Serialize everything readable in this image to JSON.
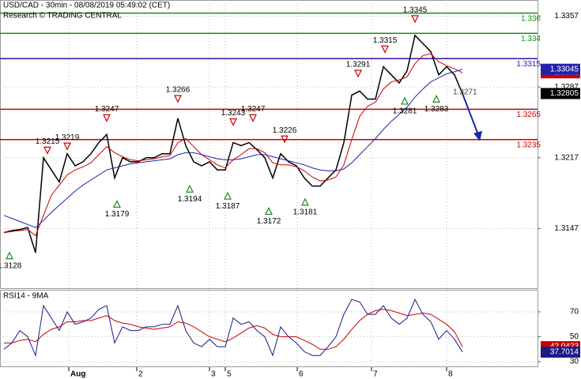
{
  "chart_data": [
    {
      "type": "line",
      "title": "USD/CAD - 30min - 08/08/2019 05:49:02 (CET)",
      "subtitle": "Research © TRADING CENTRAL",
      "x": [
        0,
        1,
        2,
        3,
        4,
        5,
        6,
        7,
        8,
        9,
        10,
        11,
        12,
        13,
        14,
        15,
        16,
        17,
        18,
        19,
        20,
        21,
        22,
        23,
        24,
        25,
        26,
        27,
        28,
        29,
        30,
        31,
        32,
        33,
        34,
        35,
        36,
        37,
        38,
        39,
        40,
        41,
        42,
        43,
        44,
        45,
        46,
        47,
        48,
        49,
        50,
        51,
        52,
        53,
        54,
        55,
        56,
        57,
        58
      ],
      "xlim": [
        -0.5,
        67.5
      ],
      "ylim": [
        1.3088,
        1.3373
      ],
      "yticks": [
        1.3357,
        1.3287,
        1.3217,
        1.3147
      ],
      "grid": true,
      "series": [
        {
          "color": "#000000",
          "values": [
            1.3143,
            1.3145,
            1.3146,
            1.3148,
            1.3123,
            1.3217,
            1.3205,
            1.3193,
            1.3221,
            1.3209,
            1.3213,
            1.3221,
            1.3232,
            1.324,
            1.3197,
            1.3217,
            1.3213,
            1.3213,
            1.3217,
            1.3217,
            1.3221,
            1.3221,
            1.3256,
            1.3229,
            1.3213,
            1.3209,
            1.3213,
            1.3205,
            1.3205,
            1.3232,
            1.3229,
            1.3232,
            1.3225,
            1.3217,
            1.3197,
            1.3221,
            1.3213,
            1.3209,
            1.3197,
            1.3189,
            1.3189,
            1.3197,
            1.3205,
            1.3232,
            1.3279,
            1.3283,
            1.3275,
            1.3275,
            1.3307,
            1.3299,
            1.3291,
            1.3303,
            1.3338,
            1.333,
            1.3322,
            1.3299,
            1.3307,
            1.3299,
            1.32805
          ]
        },
        {
          "color": "#cc0000",
          "values": [
            1.3143,
            1.3144,
            1.3145,
            1.3146,
            1.314,
            1.316,
            1.318,
            1.319,
            1.32,
            1.3205,
            1.3208,
            1.3212,
            1.322,
            1.3228,
            1.3222,
            1.3218,
            1.3215,
            1.3214,
            1.3215,
            1.3216,
            1.3218,
            1.3219,
            1.3232,
            1.3236,
            1.3228,
            1.322,
            1.3215,
            1.321,
            1.3207,
            1.3215,
            1.322,
            1.3226,
            1.3226,
            1.3222,
            1.3212,
            1.321,
            1.321,
            1.3208,
            1.3204,
            1.3198,
            1.3194,
            1.3195,
            1.3198,
            1.321,
            1.3235,
            1.3258,
            1.3268,
            1.3272,
            1.3285,
            1.3292,
            1.3294,
            1.3297,
            1.331,
            1.3318,
            1.332,
            1.3312,
            1.3308,
            1.3305,
            1.3301
          ]
        },
        {
          "color": "#2222aa",
          "values": [
            1.316,
            1.3157,
            1.3154,
            1.3151,
            1.3148,
            1.3155,
            1.3163,
            1.317,
            1.3177,
            1.3184,
            1.319,
            1.3195,
            1.32,
            1.3205,
            1.3207,
            1.3209,
            1.3211,
            1.3212,
            1.3213,
            1.3214,
            1.3215,
            1.3216,
            1.322,
            1.3222,
            1.3222,
            1.322,
            1.3218,
            1.3216,
            1.3215,
            1.3215,
            1.3216,
            1.3218,
            1.322,
            1.322,
            1.3218,
            1.3216,
            1.3214,
            1.3212,
            1.321,
            1.3207,
            1.3205,
            1.3204,
            1.3204,
            1.3206,
            1.3212,
            1.322,
            1.3228,
            1.3236,
            1.3245,
            1.3253,
            1.326,
            1.3267,
            1.3277,
            1.3285,
            1.3292,
            1.3296,
            1.33,
            1.3302,
            1.33045
          ]
        }
      ],
      "levels": [
        {
          "value": 1.336,
          "color": "#1a8c1a"
        },
        {
          "value": 1.334,
          "color": "#1a8c1a"
        },
        {
          "value": 1.3315,
          "color": "#3311aa"
        },
        {
          "value": 1.3265,
          "color": "#cc0000"
        },
        {
          "value": 1.3235,
          "color": "#cc0000"
        }
      ],
      "annotations": [
        {
          "value": 1.3128,
          "x": 0.7,
          "kind": "trough"
        },
        {
          "value": 1.3215,
          "x": 5.5,
          "kind": "peak"
        },
        {
          "value": 1.3219,
          "x": 8,
          "kind": "peak"
        },
        {
          "value": 1.3247,
          "x": 13,
          "kind": "peak"
        },
        {
          "value": 1.3179,
          "x": 14.3,
          "kind": "trough"
        },
        {
          "value": 1.3266,
          "x": 22,
          "kind": "peak"
        },
        {
          "value": 1.3194,
          "x": 23.5,
          "kind": "trough"
        },
        {
          "value": 1.3187,
          "x": 28.3,
          "kind": "trough"
        },
        {
          "value": 1.3243,
          "x": 29,
          "kind": "peak"
        },
        {
          "value": 1.3247,
          "x": 31.5,
          "kind": "peak"
        },
        {
          "value": 1.3172,
          "x": 33.5,
          "kind": "trough"
        },
        {
          "value": 1.3226,
          "x": 35.5,
          "kind": "peak"
        },
        {
          "value": 1.3181,
          "x": 38.1,
          "kind": "trough"
        },
        {
          "value": 1.3291,
          "x": 44.8,
          "kind": "peak"
        },
        {
          "value": 1.3315,
          "x": 48.2,
          "kind": "peak"
        },
        {
          "value": 1.3281,
          "x": 50.7,
          "kind": "trough"
        },
        {
          "value": 1.3345,
          "x": 52,
          "kind": "peak"
        },
        {
          "value": 1.3283,
          "x": 54.7,
          "kind": "trough"
        }
      ],
      "target": 1.3271
    },
    {
      "type": "line",
      "title": "RSI14 - 9MA",
      "x": [
        0,
        1,
        2,
        3,
        4,
        5,
        6,
        7,
        8,
        9,
        10,
        11,
        12,
        13,
        14,
        15,
        16,
        17,
        18,
        19,
        20,
        21,
        22,
        23,
        24,
        25,
        26,
        27,
        28,
        29,
        30,
        31,
        32,
        33,
        34,
        35,
        36,
        37,
        38,
        39,
        40,
        41,
        42,
        43,
        44,
        45,
        46,
        47,
        48,
        49,
        50,
        51,
        52,
        53,
        54,
        55,
        56,
        57,
        58
      ],
      "xlim": [
        -0.5,
        67.5
      ],
      "ylim": [
        25.6,
        87.1
      ],
      "yticks": [
        70,
        50,
        30
      ],
      "grid": true,
      "xticks": [
        {
          "value": 8.2,
          "label": "Aug"
        },
        {
          "value": 16.8,
          "label": "2"
        },
        {
          "value": 26,
          "label": "3"
        },
        {
          "value": 28,
          "label": "5"
        },
        {
          "value": 37.1,
          "label": "6"
        },
        {
          "value": 46.5,
          "label": "7"
        },
        {
          "value": 56,
          "label": "8"
        }
      ],
      "series": [
        {
          "color": "#cc0000",
          "values": [
            45,
            45,
            47,
            48,
            46,
            52,
            56,
            58,
            62,
            62,
            63,
            63,
            65,
            67,
            63,
            61,
            60,
            58,
            57,
            56,
            57,
            58,
            62,
            61,
            58,
            54,
            50,
            48,
            46,
            49,
            53,
            57,
            59,
            57,
            52,
            50,
            50,
            50,
            47,
            44,
            40,
            40,
            42,
            48,
            56,
            63,
            68,
            71,
            72,
            71,
            69,
            67,
            68,
            69,
            68,
            64,
            60,
            54,
            42.0423
          ]
        },
        {
          "color": "#1a1a88",
          "values": [
            40,
            45,
            55,
            50,
            35,
            75,
            65,
            55,
            70,
            60,
            62,
            65,
            72,
            75,
            45,
            58,
            55,
            55,
            58,
            58,
            60,
            60,
            75,
            55,
            45,
            42,
            48,
            42,
            42,
            65,
            60,
            62,
            55,
            50,
            35,
            58,
            50,
            45,
            38,
            35,
            35,
            42,
            50,
            68,
            80,
            78,
            68,
            68,
            75,
            65,
            60,
            65,
            80,
            68,
            62,
            48,
            55,
            48,
            37.7014
          ]
        }
      ]
    }
  ]
}
